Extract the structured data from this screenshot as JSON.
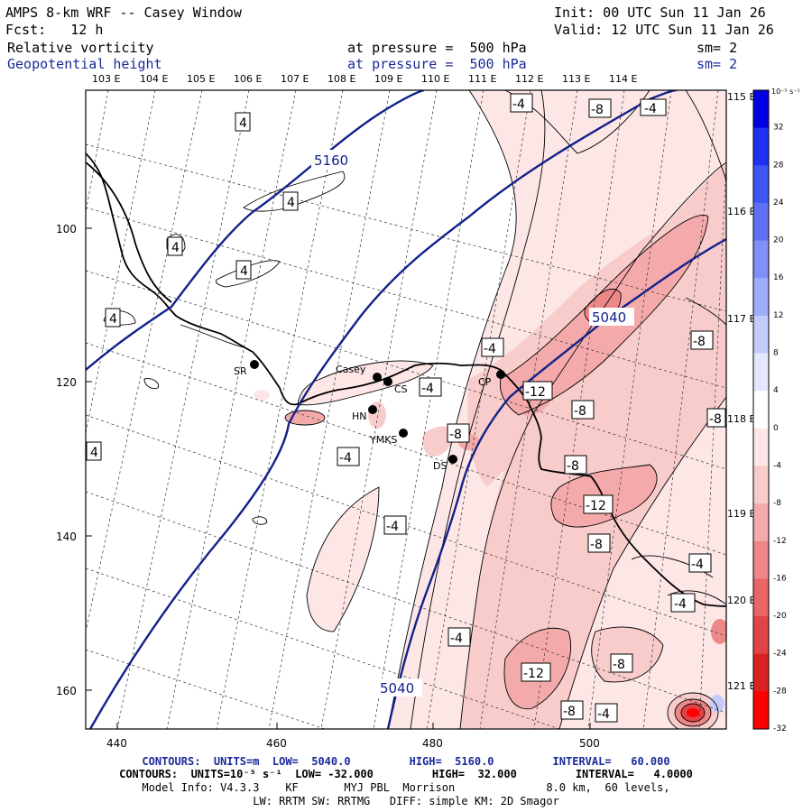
{
  "header": {
    "title": "AMPS 8-km WRF -- Casey Window",
    "init": "Init: 00 UTC Sun 11 Jan 26",
    "fcst": "Fcst:   12 h",
    "valid": "Valid: 12 UTC Sun 11 Jan 26",
    "field1": {
      "name": "Relative vorticity",
      "level": "at pressure =  500 hPa",
      "sm": "sm= 2"
    },
    "field2": {
      "name": "Geopotential height",
      "level": "at pressure =  500 hPa",
      "sm": "sm= 2"
    }
  },
  "axes": {
    "top_lon": [
      "103 E",
      "104 E",
      "105 E",
      "106 E",
      "107 E",
      "108 E",
      "109 E",
      "110 E",
      "111 E",
      "112 E",
      "113 E",
      "114 E"
    ],
    "right_lon": [
      "115 E",
      "116 E",
      "117 E",
      "118 E",
      "119 E",
      "120 E",
      "121 E"
    ],
    "left_ticks": [
      "100",
      "120",
      "140",
      "160"
    ],
    "bottom_ticks": [
      "440",
      "460",
      "480",
      "500"
    ]
  },
  "colorbar": {
    "unit": "10⁻⁵ s⁻¹",
    "labels": [
      "32",
      "28",
      "24",
      "20",
      "16",
      "12",
      "8",
      "4",
      "0",
      "-4",
      "-8",
      "-12",
      "-16",
      "-20",
      "-24",
      "-28",
      "-32"
    ],
    "colors": [
      "#0000e0",
      "#2030f0",
      "#3f55f5",
      "#6070f5",
      "#8090f8",
      "#a0aefa",
      "#c4ccfc",
      "#e4e8fe",
      "#ffffff",
      "#fde6e6",
      "#f9cccc",
      "#f4aaaa",
      "#ee8888",
      "#e86666",
      "#e04444",
      "#d82222",
      "#ff0000"
    ]
  },
  "stations": [
    {
      "label": "SR"
    },
    {
      "label": "Casey"
    },
    {
      "label": "CS"
    },
    {
      "label": "HN"
    },
    {
      "label": "YMKS"
    },
    {
      "label": "CP"
    },
    {
      "label": "DS"
    }
  ],
  "height_labels": [
    "5160",
    "5040",
    "5040"
  ],
  "vort_labels": [
    "4",
    "4",
    "4",
    "4",
    "4",
    "4",
    "-4",
    "-8",
    "-4",
    "-8",
    "-4",
    "-4",
    "-4",
    "-12",
    "-8",
    "-8",
    "-4",
    "-8",
    "-12",
    "-8",
    "-4",
    "-4",
    "-4",
    "-8",
    "-12",
    "-8",
    "-4",
    "-8"
  ],
  "footer": {
    "line1": "CONTOURS:  UNITS=m  LOW=  5040.0         HIGH=  5160.0         INTERVAL=   60.000",
    "line2": "CONTOURS:  UNITS=10⁻⁵ s⁻¹  LOW= -32.000         HIGH=  32.000         INTERVAL=   4.0000",
    "line3": "Model Info: V4.3.3    KF       MYJ PBL  Morrison              8.0 km,  60 levels,",
    "line4": "LW: RRTM SW: RRTMG   DIFF: simple KM: 2D Smagor"
  }
}
